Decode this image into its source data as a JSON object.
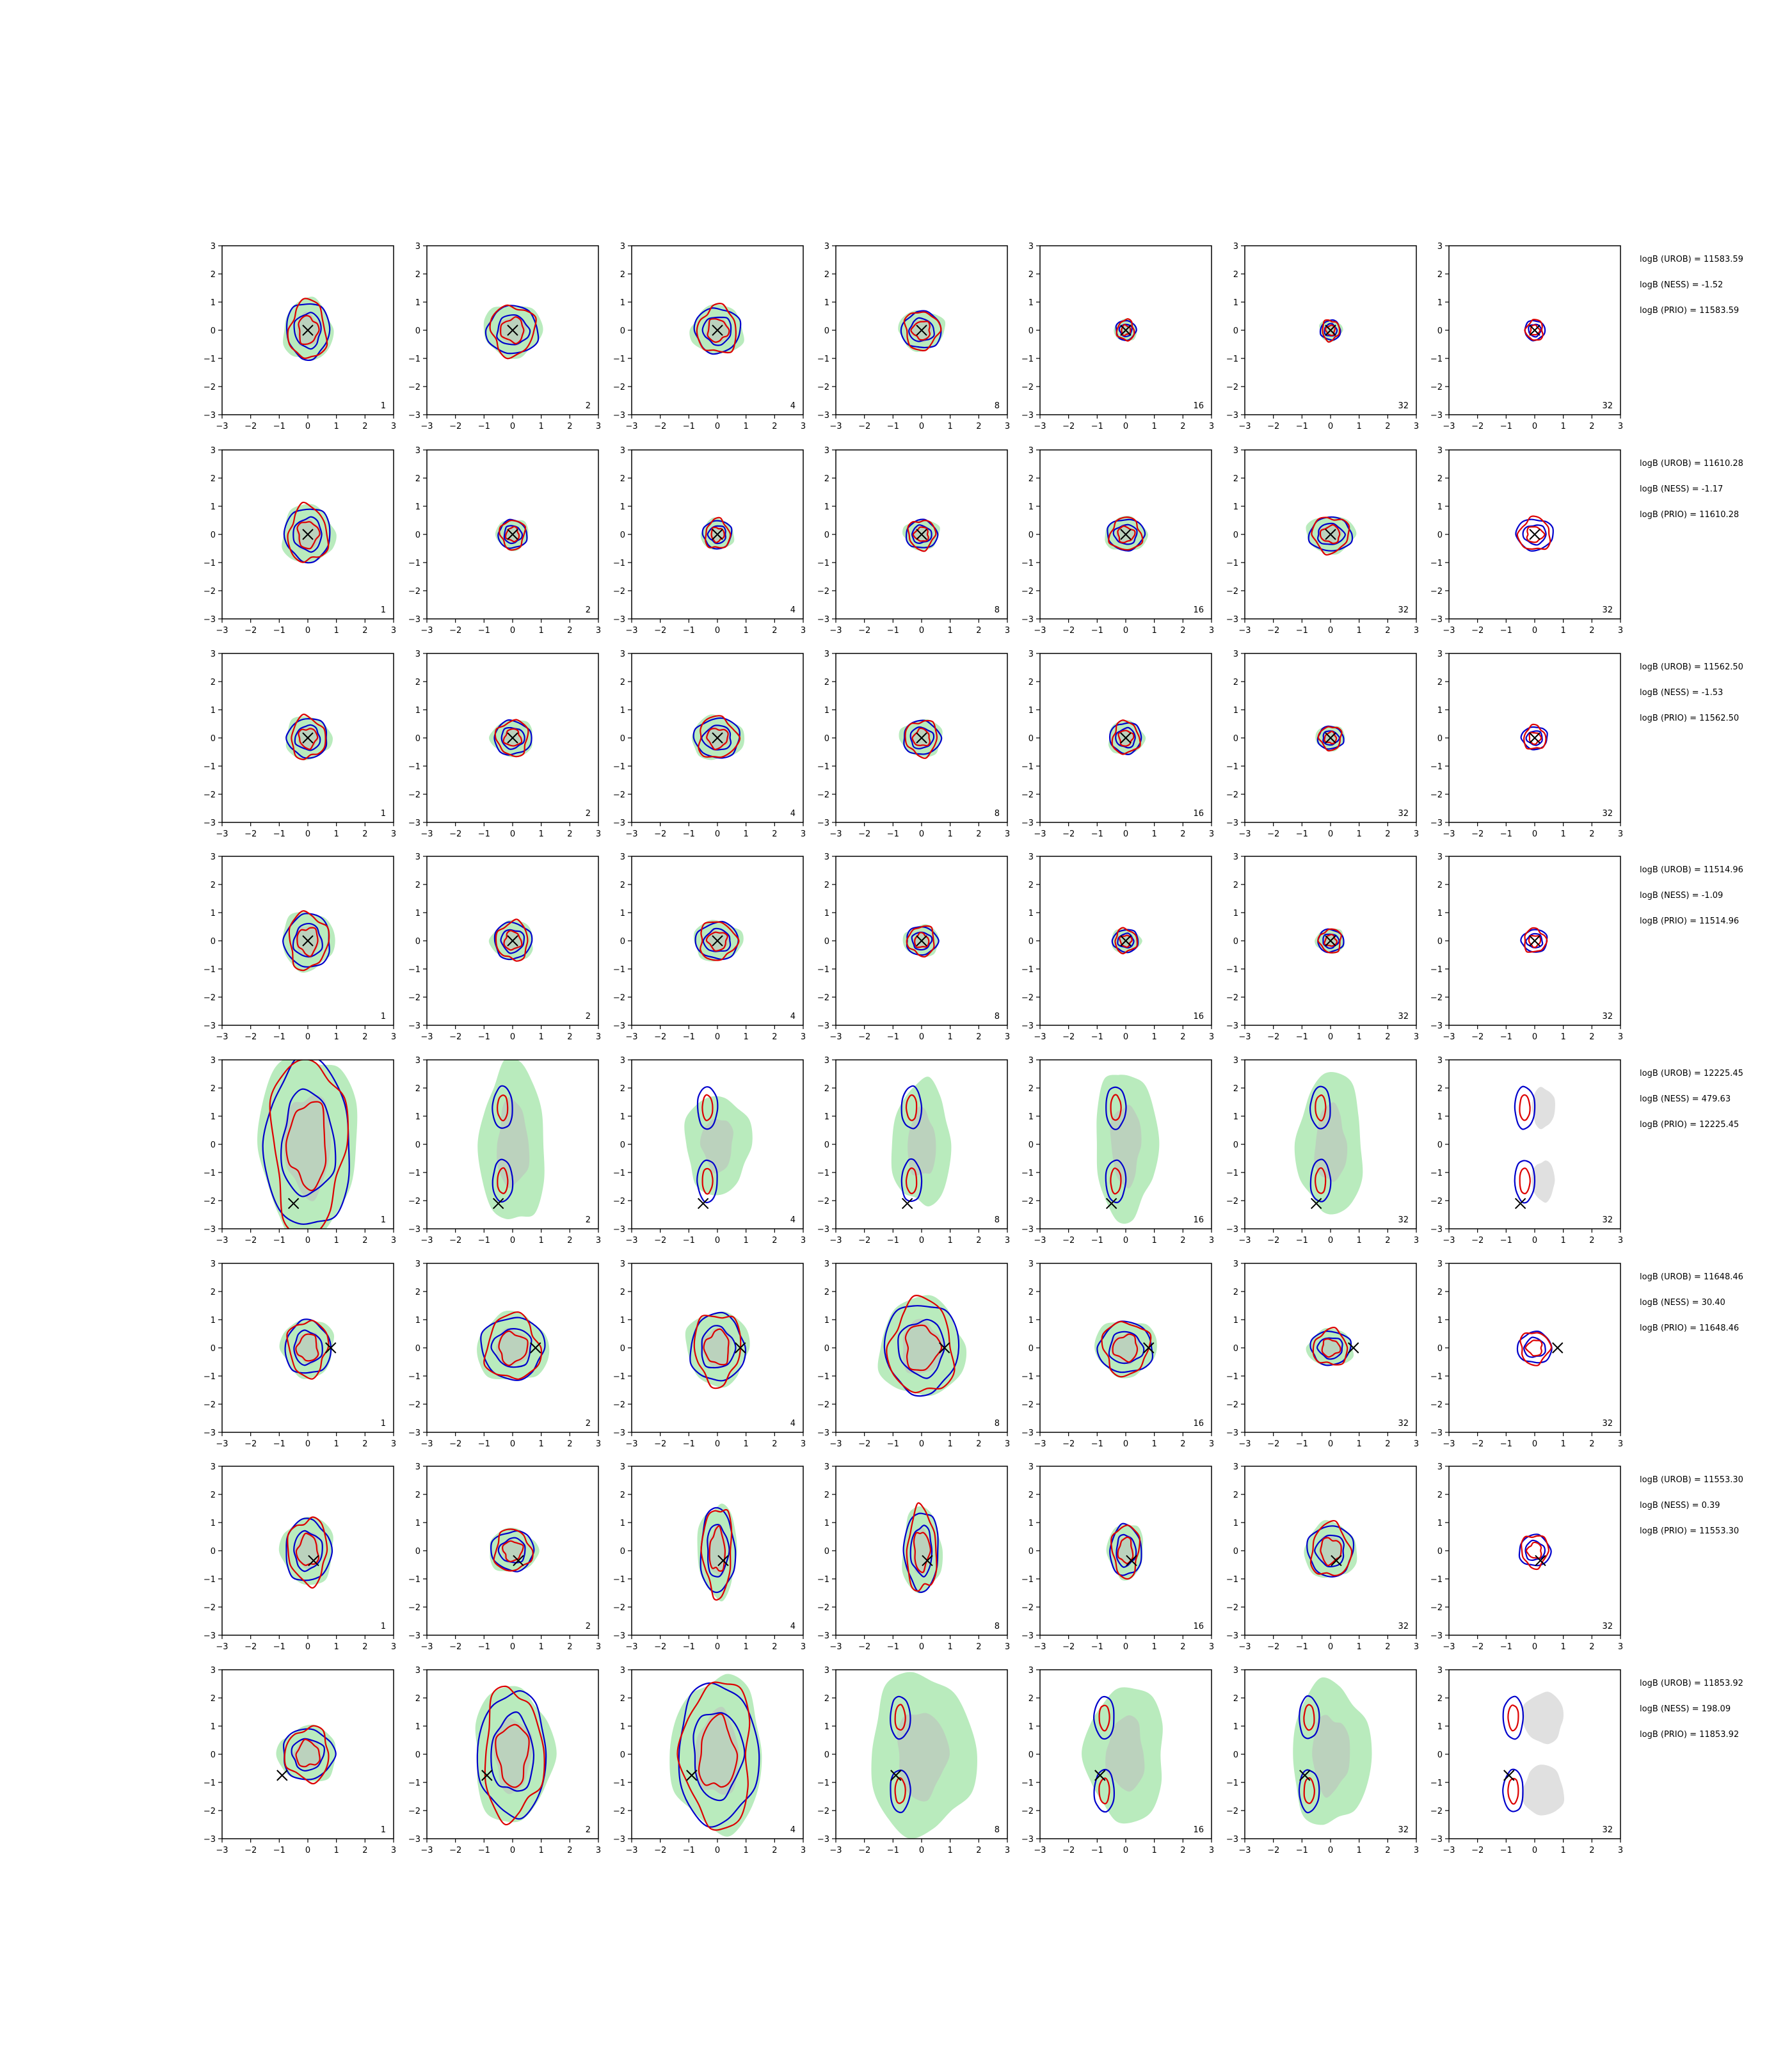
{
  "chart_data": {
    "type": "contour",
    "xlim": [
      -3,
      3
    ],
    "ylim": [
      -3,
      3
    ],
    "ticks": [
      "−3",
      "−2",
      "−1",
      "0",
      "1",
      "2",
      "3"
    ],
    "columns": [
      "1",
      "2",
      "4",
      "8",
      "16",
      "32",
      "32"
    ],
    "rows": [
      {
        "logb_lines": [
          "logB (UROB) = 11583.59",
          "logB (NESS) = -1.52",
          "logB (PRIO) = 11583.59"
        ],
        "marker": [
          0,
          0
        ],
        "spreads": [
          [
            0.75,
            1.0
          ],
          [
            0.9,
            0.85
          ],
          [
            0.8,
            0.8
          ],
          [
            0.7,
            0.65
          ],
          [
            0.35,
            0.35
          ],
          [
            0.35,
            0.35
          ],
          [
            0.35,
            0.35
          ]
        ]
      },
      {
        "logb_lines": [
          "logB (UROB) = 11610.28",
          "logB (NESS) = -1.17",
          "logB (PRIO) = 11610.28"
        ],
        "marker": [
          0,
          0
        ],
        "spreads": [
          [
            0.8,
            0.95
          ],
          [
            0.5,
            0.5
          ],
          [
            0.5,
            0.5
          ],
          [
            0.55,
            0.5
          ],
          [
            0.65,
            0.55
          ],
          [
            0.75,
            0.6
          ],
          [
            0.65,
            0.55
          ]
        ]
      },
      {
        "logb_lines": [
          "logB (UROB) = 11562.50",
          "logB (NESS) = -1.53",
          "logB (PRIO) = 11562.50"
        ],
        "marker": [
          0,
          0
        ],
        "spreads": [
          [
            0.7,
            0.7
          ],
          [
            0.65,
            0.6
          ],
          [
            0.8,
            0.7
          ],
          [
            0.65,
            0.6
          ],
          [
            0.55,
            0.55
          ],
          [
            0.45,
            0.4
          ],
          [
            0.45,
            0.4
          ]
        ]
      },
      {
        "logb_lines": [
          "logB (UROB) = 11514.96",
          "logB (NESS) = -1.09",
          "logB (PRIO) = 11514.96"
        ],
        "marker": [
          0,
          0
        ],
        "spreads": [
          [
            0.8,
            0.95
          ],
          [
            0.65,
            0.65
          ],
          [
            0.75,
            0.65
          ],
          [
            0.55,
            0.5
          ],
          [
            0.45,
            0.4
          ],
          [
            0.45,
            0.4
          ],
          [
            0.45,
            0.4
          ]
        ]
      },
      {
        "logb_lines": [
          "logB (UROB) = 12225.45",
          "logB (NESS) = 479.63",
          "logB (PRIO) = 12225.45"
        ],
        "marker": [
          -0.5,
          -2.1
        ],
        "spreads": [
          [
            1.5,
            3.0
          ],
          [
            1.0,
            2.6
          ],
          [
            1.0,
            1.6
          ],
          [
            0.9,
            2.0
          ],
          [
            0.95,
            2.4
          ],
          [
            1.0,
            2.3
          ],
          [
            0.45,
            1.6
          ]
        ]
      },
      {
        "logb_lines": [
          "logB (UROB) = 11648.46",
          "logB (NESS) = 30.40",
          "logB (PRIO) = 11648.46"
        ],
        "marker": [
          0.8,
          0
        ],
        "spreads": [
          [
            0.8,
            0.95
          ],
          [
            1.1,
            1.1
          ],
          [
            0.95,
            1.2
          ],
          [
            1.3,
            1.6
          ],
          [
            0.95,
            0.9
          ],
          [
            0.7,
            0.6
          ],
          [
            0.6,
            0.55
          ]
        ]
      },
      {
        "logb_lines": [
          "logB (UROB) = 11553.30",
          "logB (NESS) = 0.39",
          "logB (PRIO) = 11553.30"
        ],
        "marker": [
          0.2,
          -0.35
        ],
        "spreads": [
          [
            0.8,
            1.1
          ],
          [
            0.75,
            0.7
          ],
          [
            0.6,
            1.5
          ],
          [
            0.6,
            1.4
          ],
          [
            0.55,
            0.9
          ],
          [
            0.8,
            0.9
          ],
          [
            0.55,
            0.55
          ]
        ]
      },
      {
        "logb_lines": [
          "logB (UROB) = 11853.92",
          "logB (NESS) = 198.09",
          "logB (PRIO) = 11853.92"
        ],
        "marker": [
          -0.9,
          -0.75
        ],
        "spreads": [
          [
            0.9,
            0.9
          ],
          [
            1.2,
            2.2
          ],
          [
            1.4,
            2.5
          ],
          [
            1.6,
            2.6
          ],
          [
            1.2,
            2.2
          ],
          [
            1.2,
            2.3
          ],
          [
            0.8,
            2.0
          ]
        ]
      }
    ]
  },
  "colors": {
    "green_fill": "#b9ebbd",
    "grey_fill": "#bdbdbd",
    "blue_line": "#0000cc",
    "red_line": "#dd0000",
    "marker": "#000000"
  }
}
